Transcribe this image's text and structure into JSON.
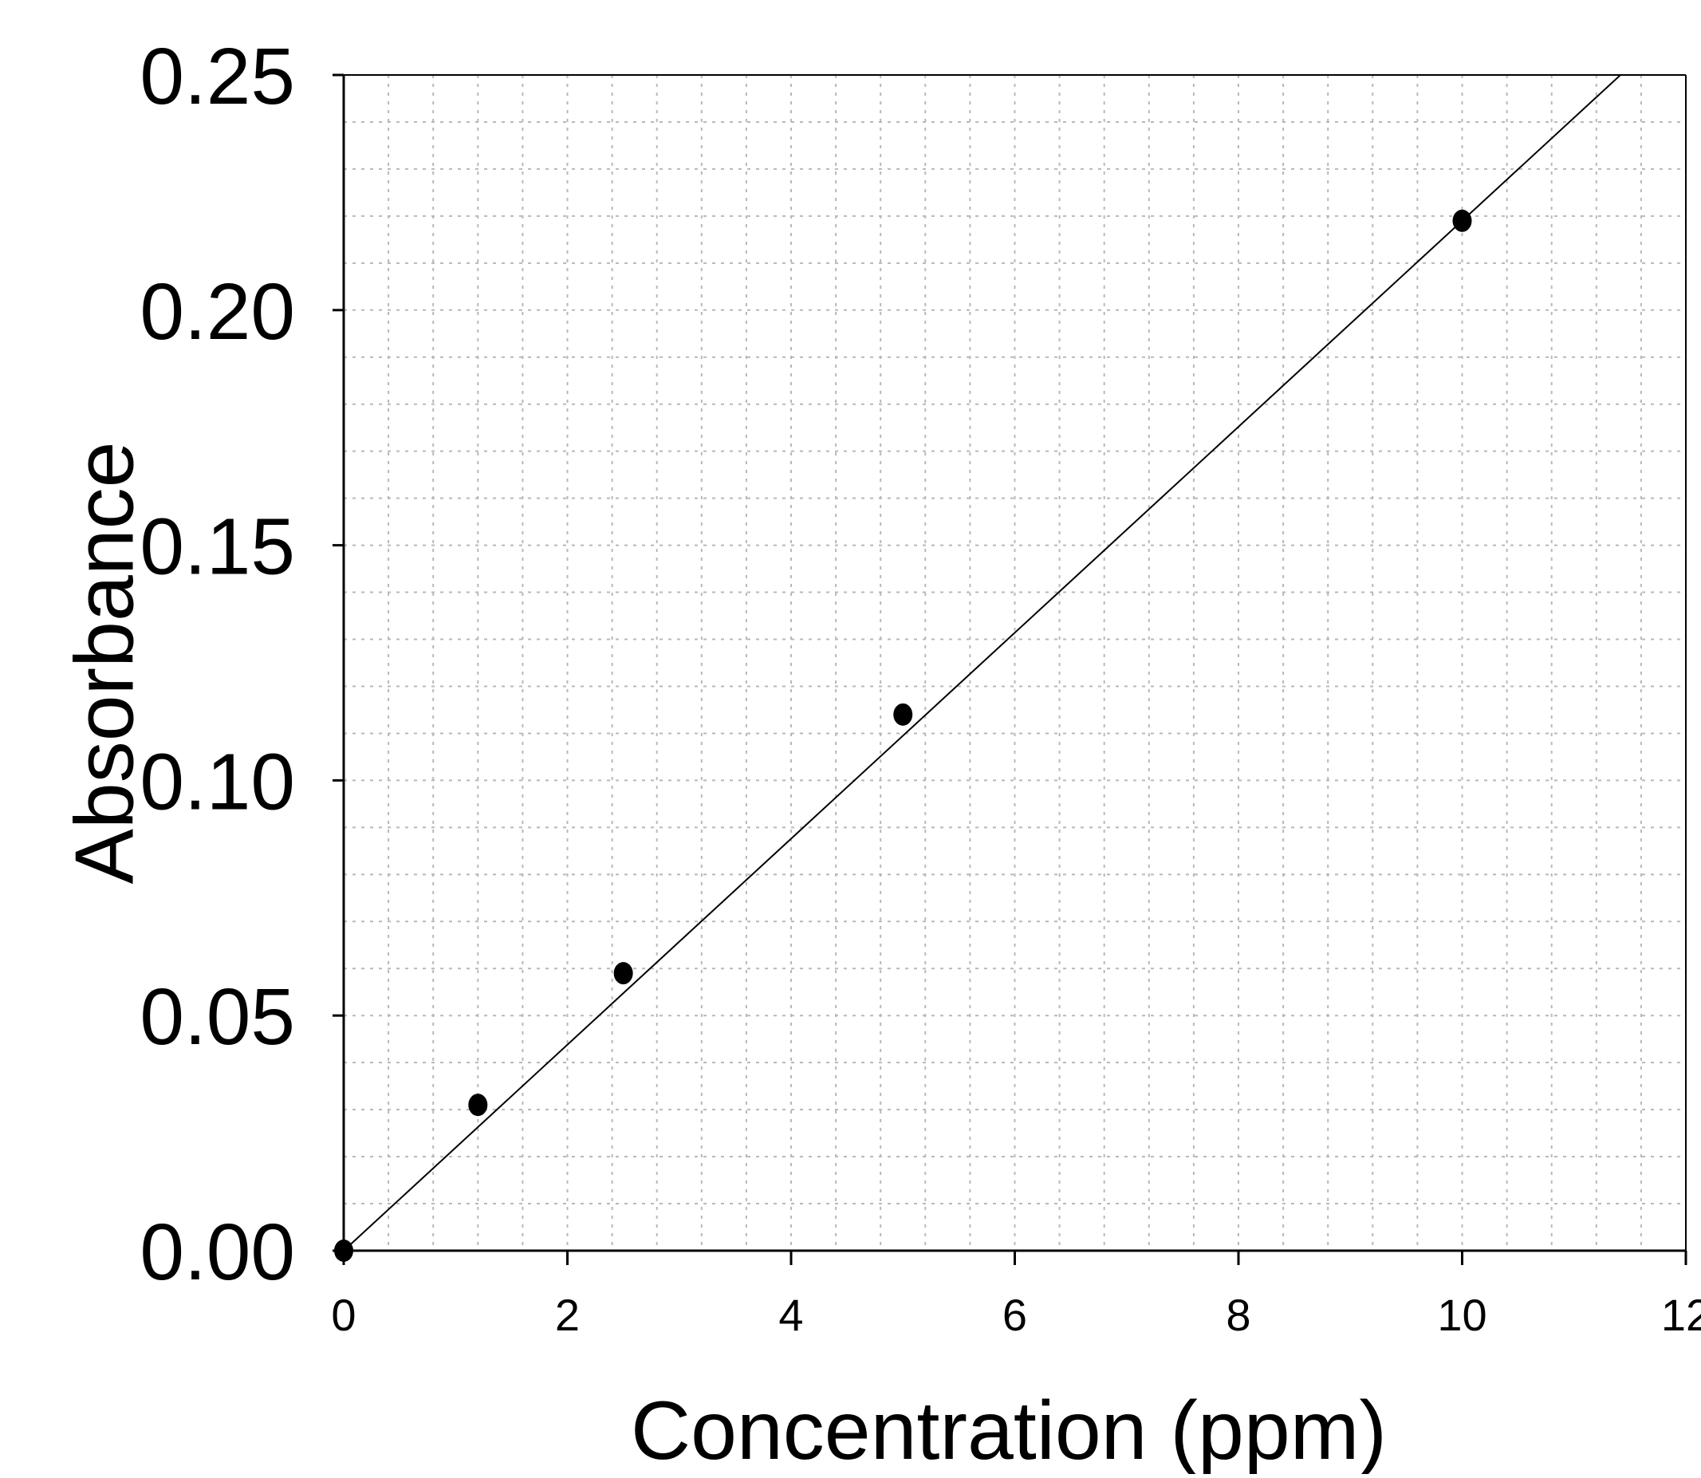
{
  "chart_data": {
    "type": "scatter",
    "title": "",
    "xlabel": "Concentration (ppm)",
    "ylabel": "Absorbance",
    "xlim": [
      0,
      12
    ],
    "ylim": [
      0,
      0.25
    ],
    "x_ticks": [
      "0",
      "2",
      "4",
      "6",
      "8",
      "10",
      "12"
    ],
    "y_ticks": [
      "0.00",
      "0.05",
      "0.10",
      "0.15",
      "0.20",
      "0.25"
    ],
    "grid": true,
    "legend": "none",
    "series": [
      {
        "x": [
          0,
          1.2,
          2.5,
          5,
          10
        ],
        "y": [
          0.0,
          0.031,
          0.059,
          0.114,
          0.219
        ],
        "marker": "filled-circle",
        "color": "#000000"
      }
    ],
    "trendline": {
      "type": "linear",
      "slope": 0.0219,
      "intercept": 0.0,
      "color": "#000000"
    }
  }
}
